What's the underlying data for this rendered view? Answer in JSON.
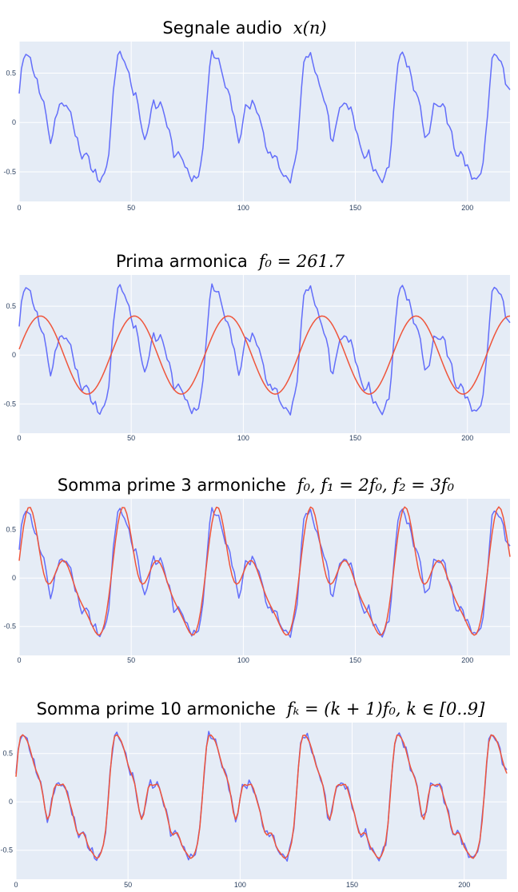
{
  "chart_data": [
    {
      "type": "line",
      "title_text": "Segnale audio",
      "title_math": "x(n)",
      "xlim": [
        0,
        219
      ],
      "ylim": [
        -0.8,
        0.82
      ],
      "x_ticks": [
        "0",
        "50",
        "100",
        "150",
        "200"
      ],
      "y_ticks": [
        "0.5",
        "0",
        "-0.5"
      ],
      "series": [
        {
          "color": "#636efa",
          "values": []
        }
      ]
    },
    {
      "type": "line",
      "title_text": "Prima armonica",
      "title_math": "f₀ = 261.7",
      "xlim": [
        0,
        219
      ],
      "ylim": [
        -0.8,
        0.82
      ],
      "x_ticks": [
        "0",
        "50",
        "100",
        "150",
        "200"
      ],
      "y_ticks": [
        "0.5",
        "0",
        "-0.5"
      ],
      "series": [
        {
          "color": "#636efa"
        },
        {
          "color": "#ef553b"
        }
      ]
    },
    {
      "type": "line",
      "title_text": "Somma prime 3 armoniche",
      "title_math": "f₀, f₁ = 2f₀, f₂ = 3f₀",
      "xlim": [
        0,
        219
      ],
      "ylim": [
        -0.8,
        0.82
      ],
      "x_ticks": [
        "0",
        "50",
        "100",
        "150",
        "200"
      ],
      "y_ticks": [
        "0.5",
        "0",
        "-0.5"
      ],
      "series": [
        {
          "color": "#636efa"
        },
        {
          "color": "#ef553b"
        }
      ]
    },
    {
      "type": "line",
      "title_text": "Somma prime 10 armoniche",
      "title_math": "fₖ = (k + 1)f₀,    k ∈ [0..9]",
      "xlim": [
        0,
        219
      ],
      "ylim": [
        -0.8,
        0.82
      ],
      "x_ticks": [
        "0",
        "50",
        "100",
        "150",
        "200"
      ],
      "y_ticks": [
        "0.5",
        "0",
        "-0.5"
      ],
      "series": [
        {
          "color": "#636efa"
        },
        {
          "color": "#ef553b"
        }
      ]
    }
  ]
}
